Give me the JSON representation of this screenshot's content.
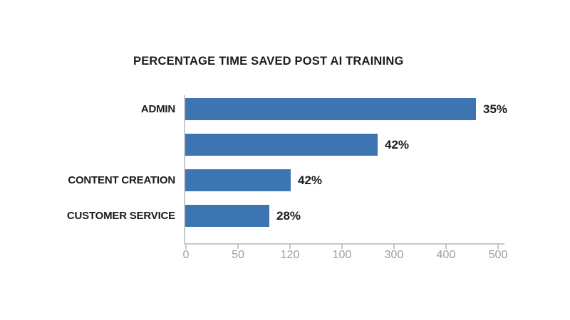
{
  "chart": {
    "colors": {
      "background": "#ffffff",
      "bar": "#3d75b3",
      "text": "#1b1b1b",
      "tick_label": "#9d9d9d",
      "axis": "#c8c8c8"
    }
  },
  "chart_data": {
    "type": "bar",
    "orientation": "horizontal",
    "title": "PERCENTAGE TIME SAVED POST AI TRAINING",
    "categories": [
      "ADMIN",
      "",
      "CONTENT CREATION",
      "CUSTOMER SERVICE"
    ],
    "data_labels": [
      "35%",
      "42%",
      "42%",
      "28%"
    ],
    "bar_lengths_axis_units": [
      468,
      310,
      171,
      137
    ],
    "x_tick_labels": [
      "0",
      "50",
      "120",
      "100",
      "300",
      "400",
      "500"
    ],
    "xlim": [
      0,
      500
    ],
    "grid": false,
    "legend": false
  }
}
